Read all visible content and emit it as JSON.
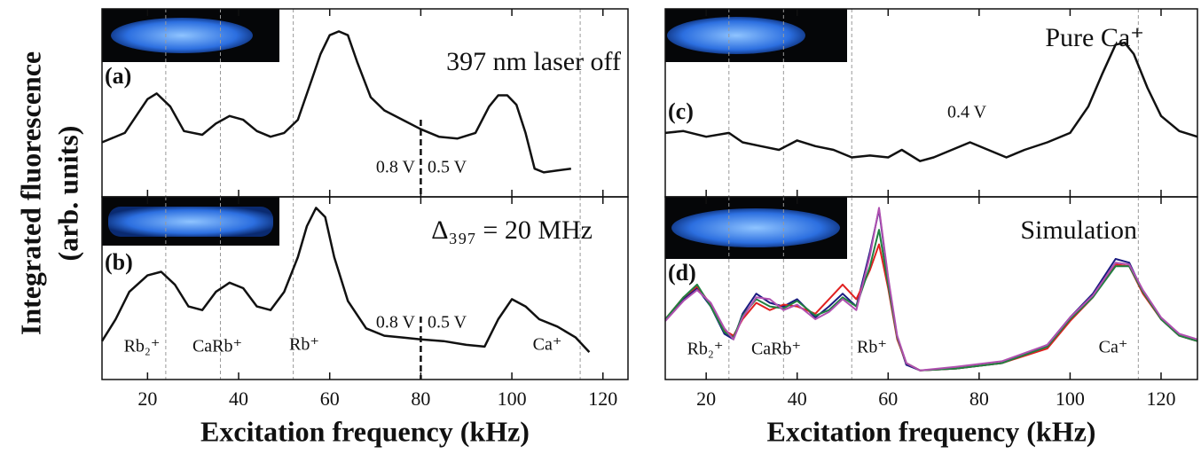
{
  "y_label": [
    "Integrated fluorescence",
    "(arb. units)"
  ],
  "chart_data": [
    {
      "type": "line",
      "panel_label": "(a)",
      "title": "397 nm laser off",
      "annotations": [
        "0.8 V",
        "0.5 V"
      ],
      "xlim": [
        10,
        125.5
      ],
      "ylim": [
        0,
        1
      ],
      "markers": [
        24,
        36,
        52,
        115
      ],
      "boundary": 80,
      "x": [
        10,
        15,
        20,
        22,
        25,
        28,
        32,
        35,
        38,
        41,
        44,
        47,
        50,
        53,
        56,
        58,
        60,
        62,
        64,
        66,
        69,
        72,
        76,
        80,
        84,
        88,
        92,
        95,
        97,
        99,
        101,
        103,
        105,
        107,
        110,
        113
      ],
      "series": [
        {
          "name": null,
          "color": "#111111",
          "values": [
            0.29,
            0.34,
            0.52,
            0.55,
            0.48,
            0.35,
            0.33,
            0.39,
            0.43,
            0.41,
            0.35,
            0.32,
            0.34,
            0.41,
            0.62,
            0.76,
            0.86,
            0.88,
            0.86,
            0.72,
            0.53,
            0.46,
            0.41,
            0.36,
            0.32,
            0.31,
            0.34,
            0.48,
            0.54,
            0.54,
            0.49,
            0.34,
            0.15,
            0.13,
            0.14,
            0.15
          ]
        }
      ]
    },
    {
      "type": "line",
      "panel_label": "(b)",
      "title": "Δ₃₉₇ = 20 MHz",
      "annotations": [
        "0.8 V",
        "0.5 V"
      ],
      "peak_labels": [
        "Rb₂⁺",
        "CaRb⁺",
        "Rb⁺",
        "Ca⁺"
      ],
      "xlim": [
        10,
        125.5
      ],
      "ylim": [
        0,
        1
      ],
      "markers": [
        24,
        36,
        52,
        115
      ],
      "boundary": 80,
      "xticks": [
        20,
        40,
        60,
        80,
        100,
        120
      ],
      "x_label": "Excitation frequency (kHz)",
      "x": [
        10,
        13,
        16,
        20,
        23,
        26,
        29,
        32,
        35,
        38,
        41,
        44,
        47,
        50,
        53,
        55,
        57,
        59,
        61,
        64,
        68,
        72,
        76,
        80,
        85,
        90,
        94,
        97,
        100,
        103,
        106,
        110,
        114,
        117
      ],
      "series": [
        {
          "name": null,
          "color": "#111111",
          "values": [
            0.21,
            0.33,
            0.48,
            0.57,
            0.59,
            0.52,
            0.4,
            0.38,
            0.48,
            0.53,
            0.5,
            0.4,
            0.38,
            0.48,
            0.67,
            0.84,
            0.94,
            0.89,
            0.67,
            0.43,
            0.28,
            0.24,
            0.23,
            0.22,
            0.21,
            0.19,
            0.18,
            0.33,
            0.44,
            0.4,
            0.33,
            0.29,
            0.23,
            0.15
          ]
        }
      ]
    },
    {
      "type": "line",
      "panel_label": "(c)",
      "title": "Pure Ca⁺",
      "annotations": [
        "0.4 V"
      ],
      "xlim": [
        11,
        128
      ],
      "ylim": [
        0,
        1
      ],
      "markers": [
        25,
        37,
        52,
        115
      ],
      "x": [
        11,
        15,
        20,
        25,
        28,
        32,
        36,
        40,
        44,
        48,
        52,
        56,
        60,
        63,
        67,
        70,
        74,
        78,
        82,
        86,
        90,
        95,
        100,
        104,
        107,
        110,
        112,
        114,
        117,
        120,
        124,
        128
      ],
      "series": [
        {
          "name": null,
          "color": "#111111",
          "values": [
            0.34,
            0.35,
            0.32,
            0.34,
            0.29,
            0.27,
            0.25,
            0.3,
            0.27,
            0.25,
            0.21,
            0.22,
            0.21,
            0.25,
            0.19,
            0.21,
            0.25,
            0.29,
            0.25,
            0.21,
            0.25,
            0.29,
            0.34,
            0.48,
            0.65,
            0.81,
            0.82,
            0.76,
            0.58,
            0.43,
            0.35,
            0.32
          ]
        }
      ]
    },
    {
      "type": "line",
      "panel_label": "(d)",
      "title": "Simulation",
      "peak_labels": [
        "Rb₂⁺",
        "CaRb⁺",
        "Rb⁺",
        "Ca⁺"
      ],
      "xlim": [
        11,
        128
      ],
      "ylim": [
        0,
        1
      ],
      "markers": [
        25,
        37,
        52,
        115
      ],
      "xticks": [
        20,
        40,
        60,
        80,
        100,
        120
      ],
      "x_label": "Excitation frequency (kHz)",
      "x": [
        11,
        15,
        18,
        21,
        24,
        26,
        28,
        31,
        34,
        37,
        40,
        44,
        47,
        50,
        53,
        56,
        58,
        60,
        62,
        64,
        67,
        75,
        85,
        95,
        100,
        105,
        110,
        113,
        116,
        120,
        124,
        128
      ],
      "series": [
        {
          "name": null,
          "color": "#1a1a80",
          "values": [
            0.33,
            0.44,
            0.5,
            0.4,
            0.25,
            0.22,
            0.36,
            0.47,
            0.42,
            0.4,
            0.44,
            0.34,
            0.4,
            0.47,
            0.4,
            0.7,
            0.93,
            0.55,
            0.23,
            0.08,
            0.05,
            0.06,
            0.09,
            0.19,
            0.34,
            0.47,
            0.66,
            0.64,
            0.48,
            0.33,
            0.24,
            0.21
          ]
        },
        {
          "name": null,
          "color": "#e02020",
          "values": [
            0.33,
            0.45,
            0.51,
            0.41,
            0.27,
            0.24,
            0.33,
            0.42,
            0.38,
            0.41,
            0.4,
            0.36,
            0.44,
            0.52,
            0.44,
            0.6,
            0.74,
            0.5,
            0.22,
            0.09,
            0.05,
            0.06,
            0.09,
            0.17,
            0.32,
            0.45,
            0.63,
            0.62,
            0.47,
            0.33,
            0.24,
            0.21
          ]
        },
        {
          "name": null,
          "color": "#208040",
          "values": [
            0.33,
            0.45,
            0.52,
            0.4,
            0.26,
            0.23,
            0.35,
            0.44,
            0.4,
            0.39,
            0.43,
            0.35,
            0.38,
            0.45,
            0.4,
            0.62,
            0.82,
            0.52,
            0.23,
            0.09,
            0.05,
            0.06,
            0.09,
            0.18,
            0.33,
            0.45,
            0.62,
            0.62,
            0.48,
            0.33,
            0.24,
            0.21
          ]
        },
        {
          "name": null,
          "color": "#b050b0",
          "values": [
            0.32,
            0.43,
            0.49,
            0.42,
            0.28,
            0.22,
            0.34,
            0.45,
            0.44,
            0.38,
            0.41,
            0.33,
            0.37,
            0.44,
            0.38,
            0.68,
            0.94,
            0.56,
            0.24,
            0.09,
            0.05,
            0.07,
            0.1,
            0.19,
            0.34,
            0.46,
            0.64,
            0.63,
            0.49,
            0.34,
            0.25,
            0.22
          ]
        }
      ]
    }
  ]
}
